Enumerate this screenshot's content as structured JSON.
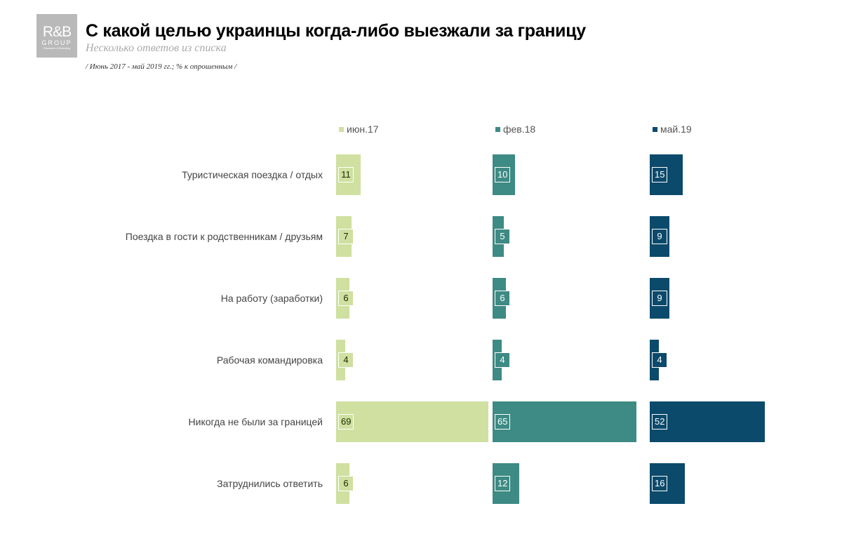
{
  "logo": {
    "line1": "R&B",
    "line2": "GROUP",
    "line3": "Research & Branding"
  },
  "title": "С какой целью украинцы когда-либо выезжали за границу",
  "subtitle": "Несколько ответов из списка",
  "note": "/ Июнь 2017 - май 2019 гг.; % к опрошенным /",
  "chart_data": {
    "type": "bar",
    "orientation": "horizontal",
    "layout": "small-multiples-by-series",
    "legend_placement": "top",
    "grid": false,
    "categories": [
      "Туристическая поездка / отдых",
      "Поездка в гости к родственникам / друзьям",
      "На работу (заработки)",
      "Рабочая командировка",
      "Никогда не были за границей",
      "Затруднились ответить"
    ],
    "series": [
      {
        "name": "июн.17",
        "color": "#cfe0a0",
        "label_color": "#1a2a00",
        "values": [
          11,
          7,
          6,
          4,
          69,
          6
        ]
      },
      {
        "name": "фев.18",
        "color": "#3e8a84",
        "label_color": "#ffffff",
        "values": [
          10,
          5,
          6,
          4,
          65,
          12
        ]
      },
      {
        "name": "май.19",
        "color": "#0b4a6b",
        "label_color": "#ffffff",
        "values": [
          15,
          9,
          9,
          4,
          52,
          16
        ]
      }
    ]
  }
}
